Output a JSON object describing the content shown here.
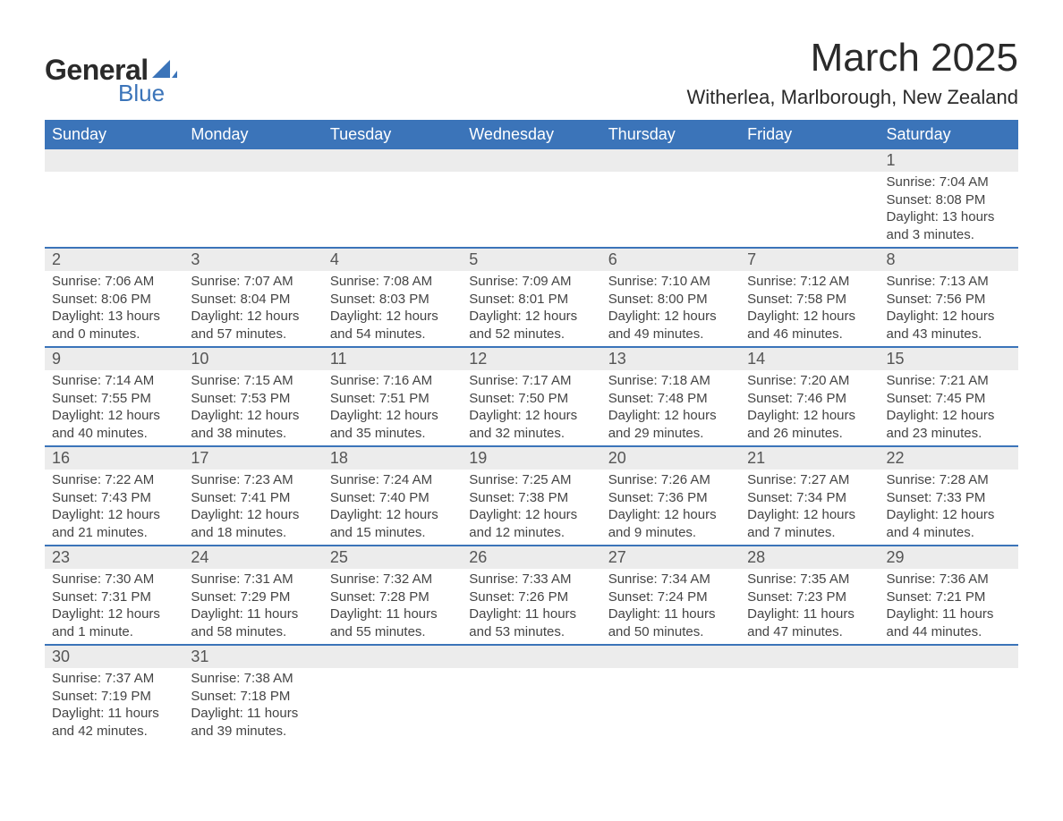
{
  "logo": {
    "text1": "General",
    "text2": "Blue",
    "shape_color": "#3b74b9"
  },
  "title": "March 2025",
  "location": "Witherlea, Marlborough, New Zealand",
  "header_bg": "#3b74b9",
  "daynum_bg": "#ececec",
  "border_color": "#3b74b9",
  "day_headers": [
    "Sunday",
    "Monday",
    "Tuesday",
    "Wednesday",
    "Thursday",
    "Friday",
    "Saturday"
  ],
  "weeks": [
    [
      null,
      null,
      null,
      null,
      null,
      null,
      {
        "n": "1",
        "sr": "Sunrise: 7:04 AM",
        "ss": "Sunset: 8:08 PM",
        "d1": "Daylight: 13 hours",
        "d2": "and 3 minutes."
      }
    ],
    [
      {
        "n": "2",
        "sr": "Sunrise: 7:06 AM",
        "ss": "Sunset: 8:06 PM",
        "d1": "Daylight: 13 hours",
        "d2": "and 0 minutes."
      },
      {
        "n": "3",
        "sr": "Sunrise: 7:07 AM",
        "ss": "Sunset: 8:04 PM",
        "d1": "Daylight: 12 hours",
        "d2": "and 57 minutes."
      },
      {
        "n": "4",
        "sr": "Sunrise: 7:08 AM",
        "ss": "Sunset: 8:03 PM",
        "d1": "Daylight: 12 hours",
        "d2": "and 54 minutes."
      },
      {
        "n": "5",
        "sr": "Sunrise: 7:09 AM",
        "ss": "Sunset: 8:01 PM",
        "d1": "Daylight: 12 hours",
        "d2": "and 52 minutes."
      },
      {
        "n": "6",
        "sr": "Sunrise: 7:10 AM",
        "ss": "Sunset: 8:00 PM",
        "d1": "Daylight: 12 hours",
        "d2": "and 49 minutes."
      },
      {
        "n": "7",
        "sr": "Sunrise: 7:12 AM",
        "ss": "Sunset: 7:58 PM",
        "d1": "Daylight: 12 hours",
        "d2": "and 46 minutes."
      },
      {
        "n": "8",
        "sr": "Sunrise: 7:13 AM",
        "ss": "Sunset: 7:56 PM",
        "d1": "Daylight: 12 hours",
        "d2": "and 43 minutes."
      }
    ],
    [
      {
        "n": "9",
        "sr": "Sunrise: 7:14 AM",
        "ss": "Sunset: 7:55 PM",
        "d1": "Daylight: 12 hours",
        "d2": "and 40 minutes."
      },
      {
        "n": "10",
        "sr": "Sunrise: 7:15 AM",
        "ss": "Sunset: 7:53 PM",
        "d1": "Daylight: 12 hours",
        "d2": "and 38 minutes."
      },
      {
        "n": "11",
        "sr": "Sunrise: 7:16 AM",
        "ss": "Sunset: 7:51 PM",
        "d1": "Daylight: 12 hours",
        "d2": "and 35 minutes."
      },
      {
        "n": "12",
        "sr": "Sunrise: 7:17 AM",
        "ss": "Sunset: 7:50 PM",
        "d1": "Daylight: 12 hours",
        "d2": "and 32 minutes."
      },
      {
        "n": "13",
        "sr": "Sunrise: 7:18 AM",
        "ss": "Sunset: 7:48 PM",
        "d1": "Daylight: 12 hours",
        "d2": "and 29 minutes."
      },
      {
        "n": "14",
        "sr": "Sunrise: 7:20 AM",
        "ss": "Sunset: 7:46 PM",
        "d1": "Daylight: 12 hours",
        "d2": "and 26 minutes."
      },
      {
        "n": "15",
        "sr": "Sunrise: 7:21 AM",
        "ss": "Sunset: 7:45 PM",
        "d1": "Daylight: 12 hours",
        "d2": "and 23 minutes."
      }
    ],
    [
      {
        "n": "16",
        "sr": "Sunrise: 7:22 AM",
        "ss": "Sunset: 7:43 PM",
        "d1": "Daylight: 12 hours",
        "d2": "and 21 minutes."
      },
      {
        "n": "17",
        "sr": "Sunrise: 7:23 AM",
        "ss": "Sunset: 7:41 PM",
        "d1": "Daylight: 12 hours",
        "d2": "and 18 minutes."
      },
      {
        "n": "18",
        "sr": "Sunrise: 7:24 AM",
        "ss": "Sunset: 7:40 PM",
        "d1": "Daylight: 12 hours",
        "d2": "and 15 minutes."
      },
      {
        "n": "19",
        "sr": "Sunrise: 7:25 AM",
        "ss": "Sunset: 7:38 PM",
        "d1": "Daylight: 12 hours",
        "d2": "and 12 minutes."
      },
      {
        "n": "20",
        "sr": "Sunrise: 7:26 AM",
        "ss": "Sunset: 7:36 PM",
        "d1": "Daylight: 12 hours",
        "d2": "and 9 minutes."
      },
      {
        "n": "21",
        "sr": "Sunrise: 7:27 AM",
        "ss": "Sunset: 7:34 PM",
        "d1": "Daylight: 12 hours",
        "d2": "and 7 minutes."
      },
      {
        "n": "22",
        "sr": "Sunrise: 7:28 AM",
        "ss": "Sunset: 7:33 PM",
        "d1": "Daylight: 12 hours",
        "d2": "and 4 minutes."
      }
    ],
    [
      {
        "n": "23",
        "sr": "Sunrise: 7:30 AM",
        "ss": "Sunset: 7:31 PM",
        "d1": "Daylight: 12 hours",
        "d2": "and 1 minute."
      },
      {
        "n": "24",
        "sr": "Sunrise: 7:31 AM",
        "ss": "Sunset: 7:29 PM",
        "d1": "Daylight: 11 hours",
        "d2": "and 58 minutes."
      },
      {
        "n": "25",
        "sr": "Sunrise: 7:32 AM",
        "ss": "Sunset: 7:28 PM",
        "d1": "Daylight: 11 hours",
        "d2": "and 55 minutes."
      },
      {
        "n": "26",
        "sr": "Sunrise: 7:33 AM",
        "ss": "Sunset: 7:26 PM",
        "d1": "Daylight: 11 hours",
        "d2": "and 53 minutes."
      },
      {
        "n": "27",
        "sr": "Sunrise: 7:34 AM",
        "ss": "Sunset: 7:24 PM",
        "d1": "Daylight: 11 hours",
        "d2": "and 50 minutes."
      },
      {
        "n": "28",
        "sr": "Sunrise: 7:35 AM",
        "ss": "Sunset: 7:23 PM",
        "d1": "Daylight: 11 hours",
        "d2": "and 47 minutes."
      },
      {
        "n": "29",
        "sr": "Sunrise: 7:36 AM",
        "ss": "Sunset: 7:21 PM",
        "d1": "Daylight: 11 hours",
        "d2": "and 44 minutes."
      }
    ],
    [
      {
        "n": "30",
        "sr": "Sunrise: 7:37 AM",
        "ss": "Sunset: 7:19 PM",
        "d1": "Daylight: 11 hours",
        "d2": "and 42 minutes."
      },
      {
        "n": "31",
        "sr": "Sunrise: 7:38 AM",
        "ss": "Sunset: 7:18 PM",
        "d1": "Daylight: 11 hours",
        "d2": "and 39 minutes."
      },
      null,
      null,
      null,
      null,
      null
    ]
  ]
}
